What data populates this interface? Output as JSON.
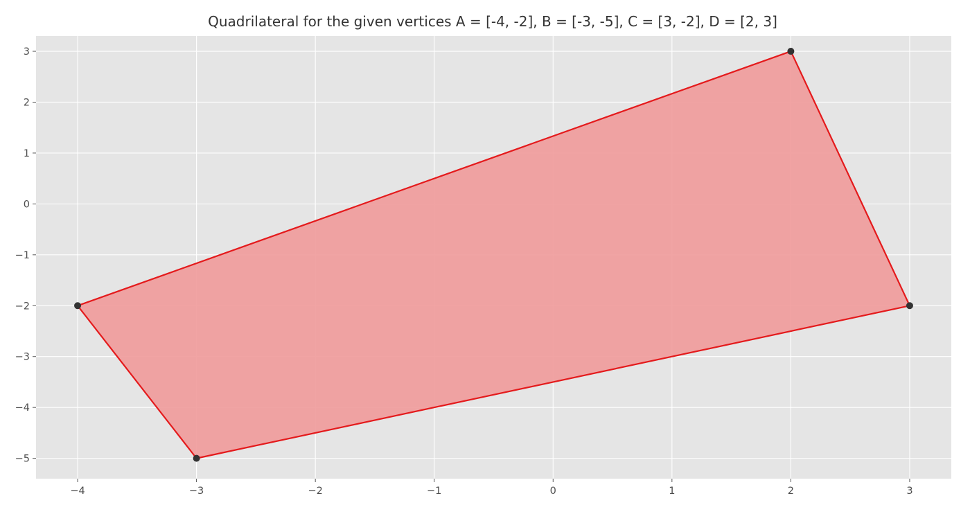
{
  "chart_data": {
    "type": "polygon",
    "title": "Quadrilateral for the given vertices A = [-4, -2], B = [-3, -5], C = [3, -2], D = [2, 3]",
    "xlabel": "",
    "ylabel": "",
    "xlim": [
      -4.35,
      3.35
    ],
    "ylim": [
      -5.4,
      3.3
    ],
    "grid": true,
    "x_ticks": [
      -4,
      -3,
      -2,
      -1,
      0,
      1,
      2,
      3
    ],
    "y_ticks": [
      -5,
      -4,
      -3,
      -2,
      -1,
      0,
      1,
      2,
      3
    ],
    "x_tick_labels": [
      "−4",
      "−3",
      "−2",
      "−1",
      "0",
      "1",
      "2",
      "3"
    ],
    "y_tick_labels": [
      "−5",
      "−4",
      "−3",
      "−2",
      "−1",
      "0",
      "1",
      "2",
      "3"
    ],
    "vertices": [
      {
        "x": -4,
        "y": -2
      },
      {
        "x": -3,
        "y": -5
      },
      {
        "x": 3,
        "y": -2
      },
      {
        "x": 2,
        "y": 3
      }
    ],
    "colors": {
      "fill": "#ef9a9a",
      "edge": "#e41a1c",
      "point": "#333333",
      "plot_background": "#e5e5e5",
      "grid": "#ffffff"
    }
  }
}
